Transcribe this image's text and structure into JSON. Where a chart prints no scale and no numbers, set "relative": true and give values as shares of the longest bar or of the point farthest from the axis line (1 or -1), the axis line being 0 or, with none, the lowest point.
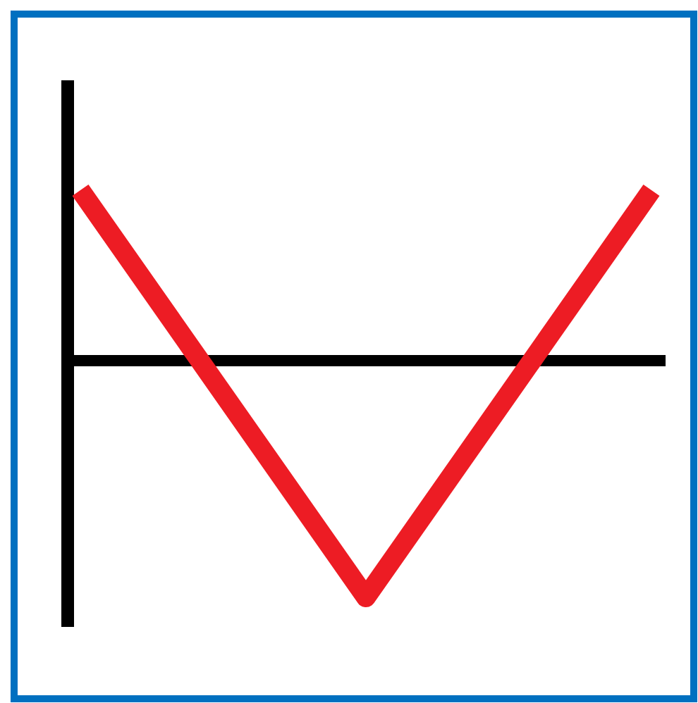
{
  "chart_data": {
    "type": "line",
    "relative": true,
    "categories": [
      null,
      null,
      null
    ],
    "series": [
      {
        "color": "#ed1c24",
        "values": [
          0.72,
          -1,
          0.72
        ]
      }
    ],
    "marker": "none",
    "line_style": "solid"
  }
}
